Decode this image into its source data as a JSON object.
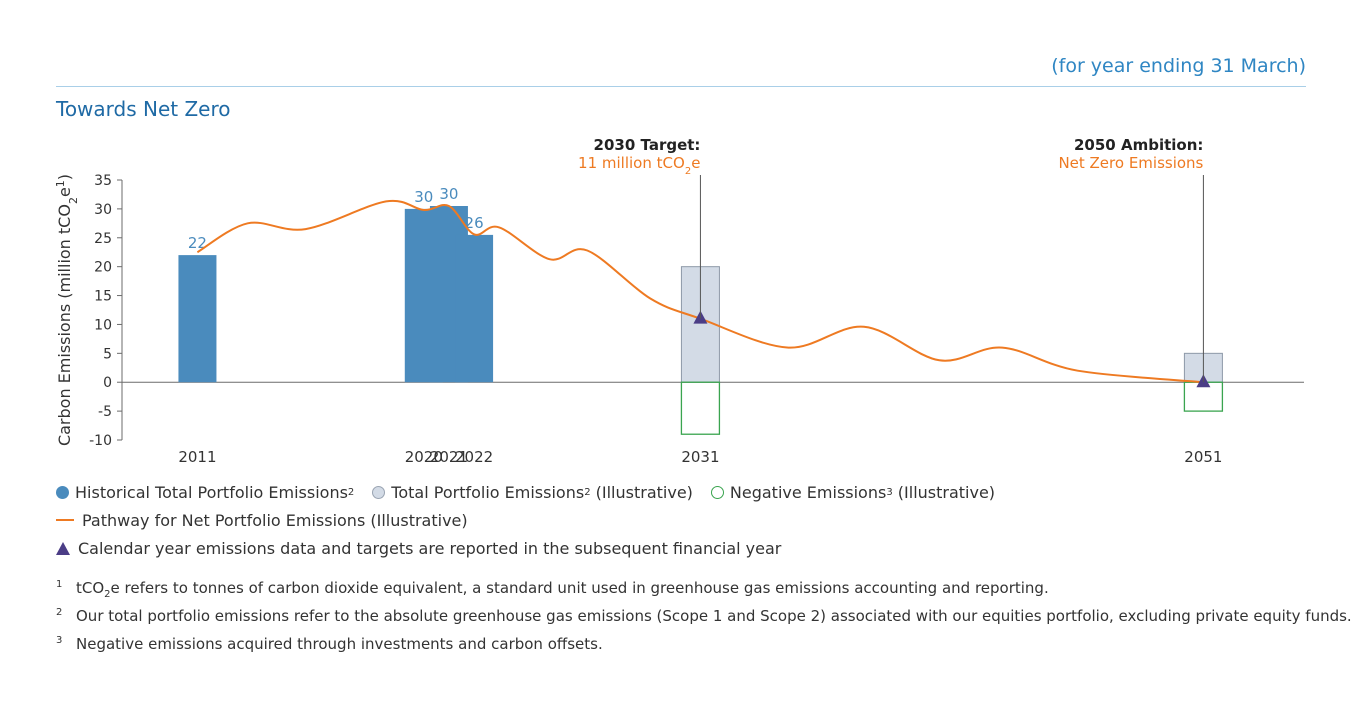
{
  "header": {
    "note": "(for year ending 31 March)",
    "title": "Towards Net Zero"
  },
  "colors": {
    "historical": "#4a8bbd",
    "illustrative_fill": "#d3dbe6",
    "illustrative_stroke": "#8e99a8",
    "negative": "#3aa44f",
    "pathway": "#ee7a22",
    "marker": "#4b3d86",
    "value_label": "#4a8bbd",
    "axis": "#6b6b6b"
  },
  "chart_data": {
    "type": "bar",
    "title": "Towards Net Zero",
    "ylabel": "Carbon Emissions (million tCO2e1)",
    "ylim": [
      -10,
      35
    ],
    "yticks": [
      35,
      30,
      25,
      20,
      15,
      10,
      5,
      0,
      -5,
      -10
    ],
    "xlim": [
      2008,
      2055
    ],
    "historical": [
      {
        "year": 2011,
        "label": "2011",
        "value": 22,
        "value_label": "22"
      },
      {
        "year": 2020,
        "label": "2020",
        "value": 30,
        "value_label": "30"
      },
      {
        "year": 2021,
        "label": "2021",
        "value": 30.5,
        "value_label": "30"
      },
      {
        "year": 2022,
        "label": "2022",
        "value": 25.5,
        "value_label": "26"
      }
    ],
    "illustrative_total": [
      {
        "year": 2031,
        "label": "2031",
        "value": 20
      },
      {
        "year": 2051,
        "label": "2051",
        "value": 5
      }
    ],
    "negative": [
      {
        "year": 2031,
        "value": -9
      },
      {
        "year": 2051,
        "value": -5
      }
    ],
    "pathway": [
      [
        2011,
        22.5
      ],
      [
        2013,
        27.5
      ],
      [
        2015.3,
        26.5
      ],
      [
        2018.5,
        31.3
      ],
      [
        2020,
        29.8
      ],
      [
        2021,
        30.5
      ],
      [
        2022,
        25.6
      ],
      [
        2023,
        26.8
      ],
      [
        2025,
        21.3
      ],
      [
        2026.5,
        22.8
      ],
      [
        2029,
        14.5
      ],
      [
        2031,
        11
      ],
      [
        2034.5,
        6
      ],
      [
        2037.5,
        9.6
      ],
      [
        2040.5,
        3.8
      ],
      [
        2043,
        6
      ],
      [
        2046,
        2
      ],
      [
        2051,
        0
      ]
    ],
    "targets": [
      {
        "year": 2031,
        "value": 11,
        "title": "2030 Target:",
        "subtitle": "11 million tCO",
        "sub": "2",
        "subtitle_tail": "e"
      },
      {
        "year": 2051,
        "value": 0,
        "title": "2050 Ambition:",
        "subtitle": "Net Zero Emissions",
        "sub": "",
        "subtitle_tail": ""
      }
    ]
  },
  "legend": {
    "historical": "Historical Total Portfolio Emissions",
    "historical_sup": "2",
    "total": "Total Portfolio Emissions",
    "total_sup": "2",
    "total_tail": " (Illustrative)",
    "negative": "Negative Emissions",
    "negative_sup": "3",
    "negative_tail": " (Illustrative)",
    "pathway": "Pathway for Net Portfolio Emissions (Illustrative)",
    "marker": "Calendar year emissions data and targets are reported in the subsequent financial year"
  },
  "footnotes": [
    {
      "num": "1",
      "pre": "tCO",
      "sub": "2",
      "post": "e refers to tonnes of carbon dioxide equivalent, a standard unit used in greenhouse gas emissions accounting and reporting."
    },
    {
      "num": "2",
      "pre": "Our total portfolio emissions refer to the absolute greenhouse gas emissions (Scope 1 and Scope 2) associated with our equities portfolio, excluding private equity funds.",
      "sub": "",
      "post": ""
    },
    {
      "num": "3",
      "pre": "Negative emissions acquired through investments and carbon offsets.",
      "sub": "",
      "post": ""
    }
  ]
}
